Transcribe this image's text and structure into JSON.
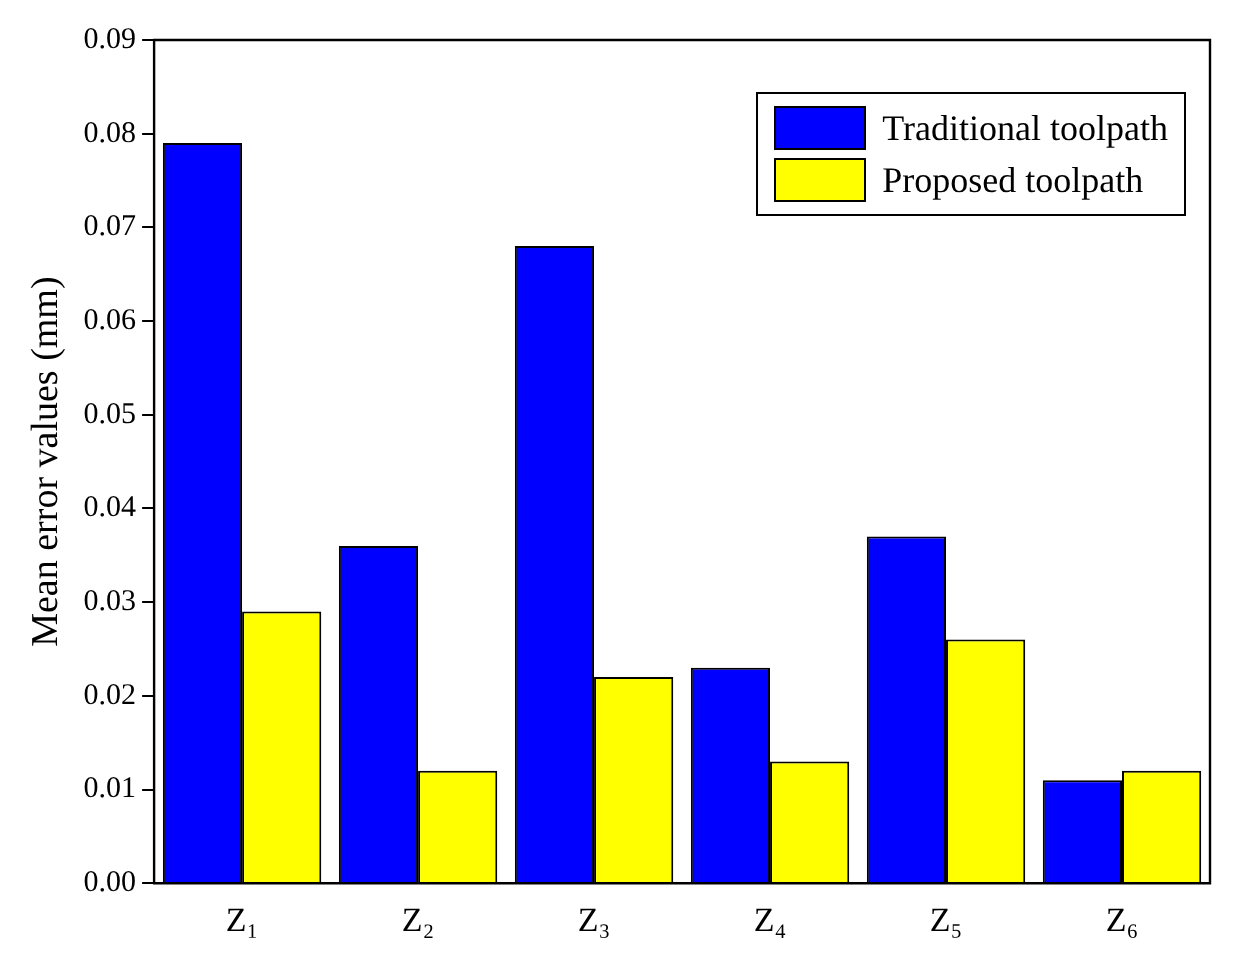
{
  "chart_data": {
    "type": "bar",
    "ylabel": "Mean error values (mm)",
    "categories": [
      "Z₁",
      "Z₂",
      "Z₃",
      "Z₄",
      "Z₅",
      "Z₆"
    ],
    "series": [
      {
        "name": "Traditional toolpath",
        "color": "#0000ff",
        "values": [
          0.079,
          0.036,
          0.068,
          0.023,
          0.037,
          0.011
        ]
      },
      {
        "name": "Proposed toolpath",
        "color": "#ffff00",
        "values": [
          0.029,
          0.012,
          0.022,
          0.013,
          0.026,
          0.012
        ]
      }
    ],
    "ylim": [
      0,
      0.09
    ],
    "yticks": [
      {
        "value": 0,
        "label": "0.00"
      },
      0.01,
      0.02,
      0.03,
      0.04,
      0.05,
      0.06,
      0.07,
      0.08,
      0.09
    ],
    "grid": false,
    "legend": "top right"
  }
}
